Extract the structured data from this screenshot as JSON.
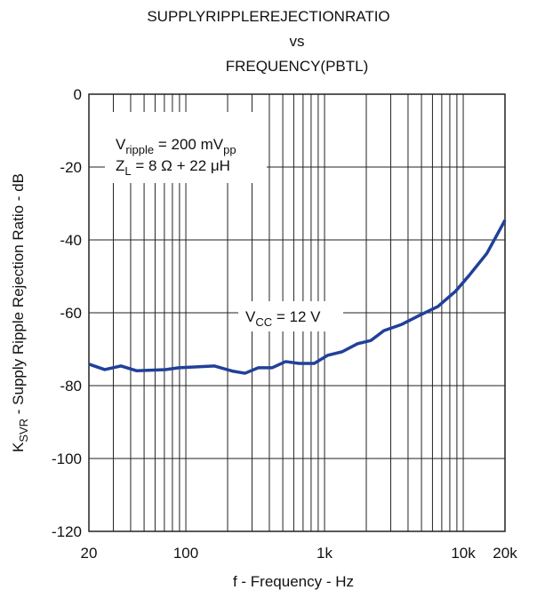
{
  "chart_data": {
    "type": "line",
    "title": [
      "SUPPLYRIPPLEREJECTIONRATIO",
      "vs",
      "FREQUENCY(PBTL)"
    ],
    "x_label": "f - Frequency - Hz",
    "y_label": {
      "main": "K",
      "sub": "SVR",
      "rest": " - Supply Ripple Rejection Ratio - dB"
    },
    "annotations": [
      {
        "main": "V",
        "sub": "ripple",
        "rest": " = 200 mV",
        "sub2": "pp"
      },
      {
        "main": "Z",
        "sub": "L",
        "rest": " = 8 Ω + 22 μH"
      },
      {
        "main": "V",
        "sub": "CC",
        "rest": " = 12 V"
      }
    ],
    "x_scale": "log",
    "xlim": [
      20,
      20000
    ],
    "xticks": [
      20,
      100,
      {
        "value": 1000,
        "label": "1k"
      },
      {
        "value": 10000,
        "label": "10k"
      },
      {
        "value": 20000,
        "label": "20k"
      }
    ],
    "xminor": [
      30,
      40,
      50,
      60,
      70,
      80,
      90,
      200,
      300,
      400,
      500,
      600,
      700,
      800,
      900,
      2000,
      3000,
      4000,
      5000,
      6000,
      7000,
      8000,
      9000
    ],
    "ylim": [
      -120,
      0
    ],
    "yticks": [
      0,
      -20,
      -40,
      -60,
      -80,
      -100,
      -120
    ],
    "grid": true,
    "series": [
      {
        "color": "#21409a",
        "x": [
          20,
          26,
          34,
          44,
          71,
          89,
          160,
          216,
          267,
          333,
          418,
          524,
          655,
          843,
          1050,
          1340,
          1730,
          2160,
          2680,
          3600,
          4850,
          6550,
          8800,
          11000,
          14800,
          20000
        ],
        "values": [
          -74.1,
          -75.6,
          -74.6,
          -75.9,
          -75.6,
          -75.1,
          -74.6,
          -76,
          -76.6,
          -75.1,
          -75.1,
          -73.4,
          -73.9,
          -73.9,
          -71.7,
          -70.7,
          -68.5,
          -67.6,
          -64.9,
          -63.2,
          -60.7,
          -58.3,
          -54.1,
          -49.8,
          -43.7,
          -34.6
        ]
      }
    ]
  }
}
